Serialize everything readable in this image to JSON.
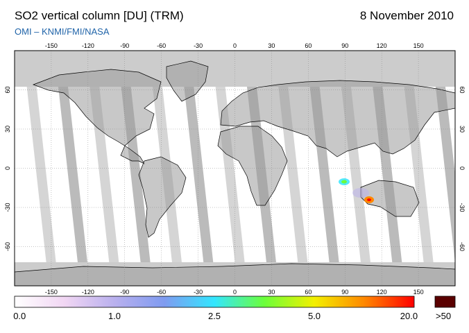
{
  "header": {
    "title": "SO2 vertical column [DU] (TRM)",
    "date": "8 November 2010",
    "credit": "OMI  –  KNMI/FMI/NASA"
  },
  "map": {
    "projection": "equirectangular",
    "lon_range": [
      -180,
      180
    ],
    "lat_range": [
      -90,
      90
    ],
    "lon_ticks": [
      "-150",
      "-120",
      "-90",
      "-60",
      "-30",
      "0",
      "30",
      "60",
      "90",
      "120",
      "150"
    ],
    "lat_ticks": [
      "60",
      "30",
      "0",
      "-30",
      "-60"
    ],
    "colors": {
      "background": "#ffffff",
      "no_data": "#cccccc",
      "land_shade": "#9a9a9a",
      "coast": "#000000",
      "grid": "#888888"
    }
  },
  "colorbar": {
    "labels": [
      "0.0",
      "1.0",
      "2.5",
      "5.0",
      "20.0"
    ],
    "overflow_label": ">50",
    "overflow_color": "#5a0000",
    "stops": [
      "#ffffff",
      "#f1d6f3",
      "#b9b0ee",
      "#7f9bf0",
      "#33e6ff",
      "#6bff3a",
      "#f3f000",
      "#ff8800",
      "#ff0000"
    ]
  }
}
